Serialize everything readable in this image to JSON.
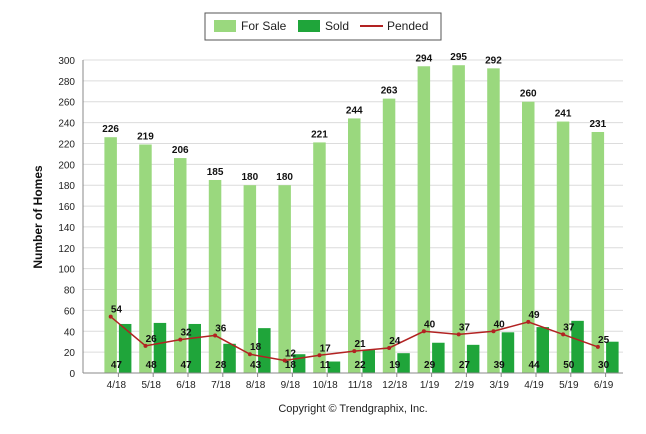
{
  "chart_data": {
    "type": "bar",
    "categories": [
      "4/18",
      "5/18",
      "6/18",
      "7/18",
      "8/18",
      "9/18",
      "10/18",
      "11/18",
      "12/18",
      "1/19",
      "2/19",
      "3/19",
      "4/19",
      "5/19",
      "6/19"
    ],
    "series": [
      {
        "name": "For Sale",
        "type": "bar",
        "color": "#9ad87e",
        "values": [
          226,
          219,
          206,
          185,
          180,
          180,
          221,
          244,
          263,
          294,
          295,
          292,
          260,
          241,
          231
        ]
      },
      {
        "name": "Sold",
        "type": "bar",
        "color": "#1fa53a",
        "values": [
          47,
          48,
          47,
          28,
          43,
          18,
          11,
          22,
          19,
          29,
          27,
          39,
          44,
          50,
          30
        ]
      },
      {
        "name": "Pended",
        "type": "line",
        "color": "#b22222",
        "values": [
          54,
          26,
          32,
          36,
          18,
          12,
          17,
          21,
          24,
          40,
          37,
          40,
          49,
          37,
          25
        ]
      }
    ],
    "ylabel": "Number of Homes",
    "xlabel": "",
    "ylim": [
      0,
      300
    ],
    "yticks": [
      0,
      20,
      40,
      60,
      80,
      100,
      120,
      140,
      160,
      180,
      200,
      220,
      240,
      260,
      280,
      300
    ],
    "grid": true,
    "legend_position": "top-center"
  },
  "footer": {
    "copyright": "Copyright © Trendgraphix, Inc."
  }
}
